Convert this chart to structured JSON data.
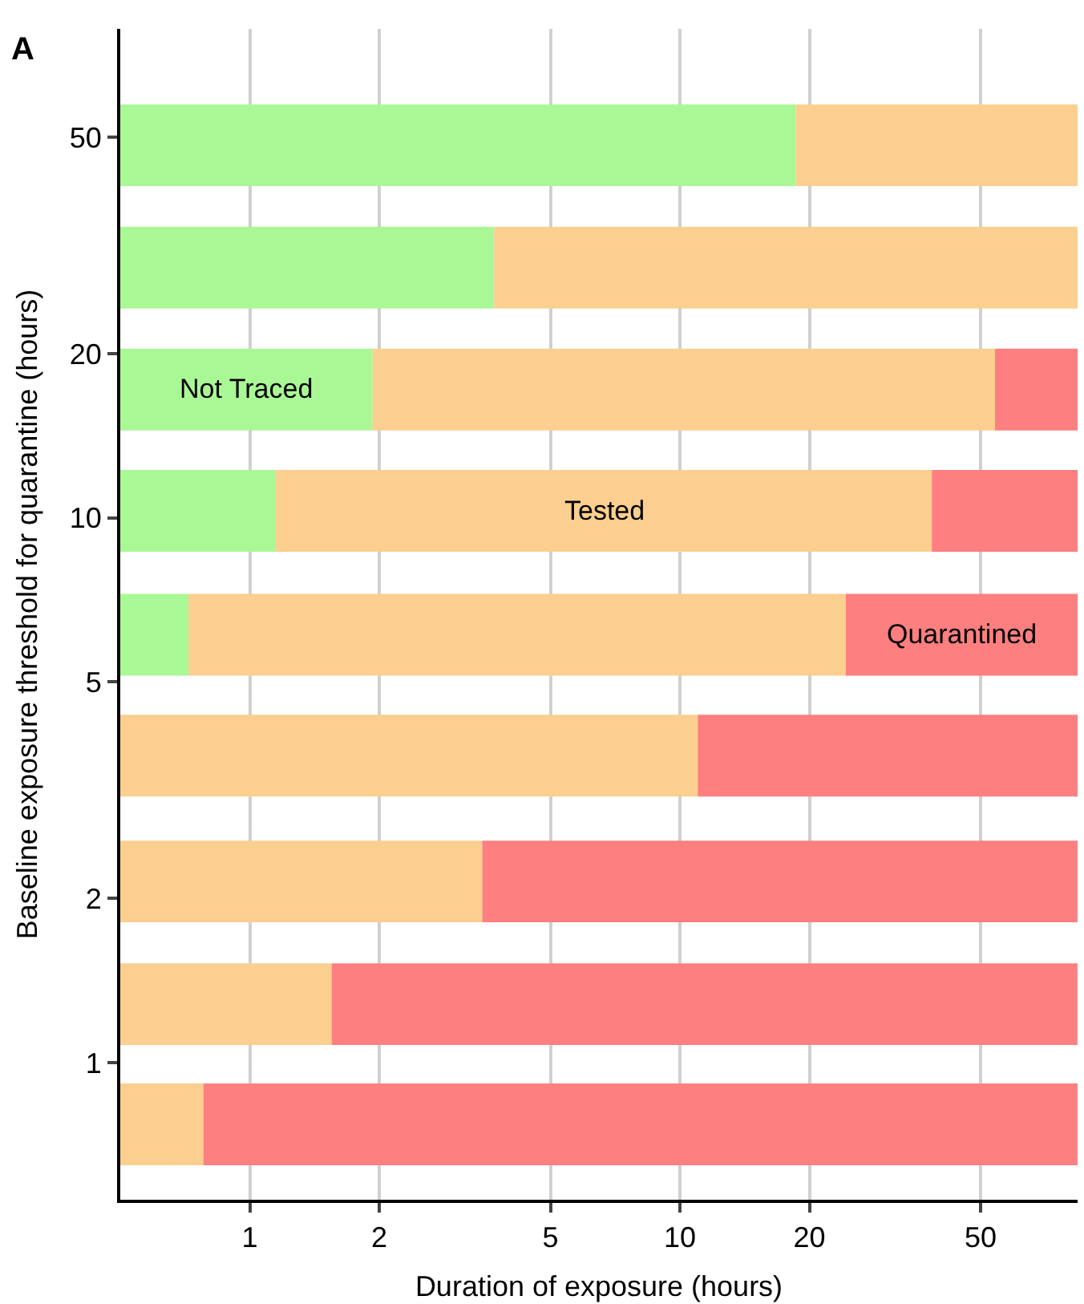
{
  "chart_data": {
    "type": "bar",
    "orientation": "horizontal",
    "xlabel": "Duration of exposure (hours)",
    "ylabel": "Baseline exposure threshold for quarantine (hours)",
    "x": [
      48.3,
      28.8,
      17.2,
      10.3,
      6.1,
      3.66,
      2.15,
      1.28,
      0.77
    ],
    "series": [
      {
        "name": "Not Traced",
        "color": "#aaf895",
        "base": [
          0.5,
          0.5,
          0.5,
          0.5,
          0.5,
          null,
          null,
          null,
          null
        ],
        "values": [
          18.1,
          3.2,
          1.43,
          0.65,
          0.22,
          null,
          null,
          null,
          null
        ]
      },
      {
        "name": "Tested",
        "color": "#fbcf8f",
        "base": [
          18.6,
          3.7,
          1.93,
          1.15,
          0.72,
          0.5,
          0.5,
          0.5,
          0.5
        ],
        "values": [
          65.4,
          80.3,
          52.1,
          37.4,
          23.6,
          10.5,
          2.97,
          1.05,
          0.28
        ]
      },
      {
        "name": "Quarantined",
        "color": "#fd7f7f",
        "base": [
          null,
          null,
          54,
          38.5,
          24.3,
          11,
          3.47,
          1.55,
          0.78
        ],
        "values": [
          null,
          null,
          30,
          45.5,
          59.7,
          73,
          80.5,
          82.4,
          83.2
        ]
      }
    ],
    "log": "xy",
    "xlim": [
      0.5,
      84
    ],
    "xticks": [
      1,
      2,
      5,
      10,
      20,
      50
    ],
    "ylim": [
      0.56,
      79
    ],
    "yticks": [
      1,
      2,
      5,
      10,
      20,
      50
    ],
    "grid": "x",
    "annotations": [
      "A"
    ]
  }
}
